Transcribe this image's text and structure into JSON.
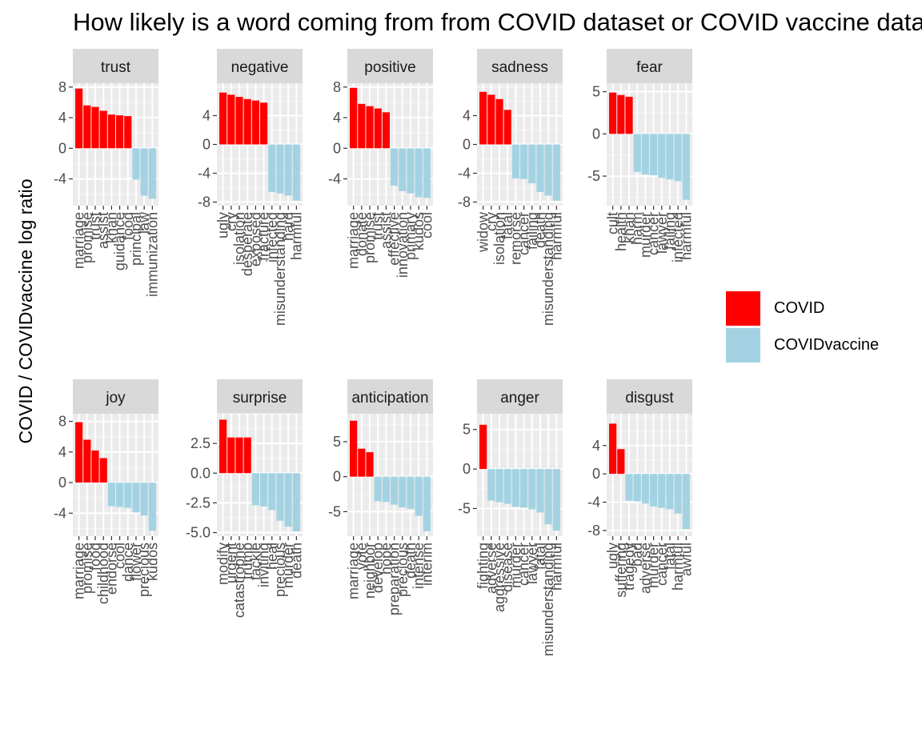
{
  "chart_data": {
    "type": "bar",
    "title": "How likely is a word coming from from COVID dataset or COVID vaccine dataset",
    "ylabel": "COVID / COVIDvaccine log ratio",
    "xlabel": "",
    "legend": {
      "position": "right",
      "entries": [
        {
          "name": "COVID",
          "color": "#FF0000"
        },
        {
          "name": "COVIDvaccine",
          "color": "#A3D3E3"
        }
      ]
    },
    "colors": {
      "COVID": "#FF0000",
      "COVIDvaccine": "#A3D3E3",
      "panel_bg": "#EBEBEB",
      "strip_bg": "#D9D9D9"
    },
    "panels": [
      {
        "label": "trust",
        "words": [
          "marriage",
          "promise",
          "trust",
          "assist",
          "khan",
          "guidance",
          "food",
          "principal",
          "law",
          "immunization"
        ],
        "values": [
          7.8,
          5.6,
          5.4,
          4.9,
          4.4,
          4.3,
          4.2,
          -4.1,
          -6.2,
          -6.6
        ],
        "ylim": [
          -7.5,
          8.5
        ],
        "yticks": [
          8,
          4,
          0,
          -4
        ],
        "ytick_labels": [
          "8",
          "4",
          "0",
          "-4"
        ]
      },
      {
        "label": "negative",
        "words": [
          "ugly",
          "cry",
          "isolation",
          "desperate",
          "exposed",
          "fracture",
          "infected",
          "misunderstanding",
          "hard",
          "harmful"
        ],
        "values": [
          7.2,
          6.9,
          6.6,
          6.3,
          6.1,
          5.8,
          -6.6,
          -6.8,
          -7.1,
          -7.8
        ],
        "ylim": [
          -8.5,
          8.5
        ],
        "yticks": [
          4,
          0,
          -4,
          -8
        ],
        "ytick_labels": [
          "4",
          "0",
          "-4",
          "-8"
        ]
      },
      {
        "label": "positive",
        "words": [
          "marriage",
          "donate",
          "promise",
          "trust",
          "assist",
          "effective",
          "innovation",
          "primary",
          "kudos",
          "cool"
        ],
        "values": [
          7.9,
          5.8,
          5.5,
          5.2,
          4.7,
          -4.9,
          -5.6,
          -5.9,
          -6.4,
          -6.5
        ],
        "ylim": [
          -7.5,
          8.5
        ],
        "yticks": [
          8,
          4,
          0,
          -4
        ],
        "ytick_labels": [
          "8",
          "4",
          "0",
          "-4"
        ]
      },
      {
        "label": "sadness",
        "words": [
          "widow",
          "cry",
          "isolation",
          "fatal",
          "remorse",
          "cancer",
          "failing",
          "death",
          "misunderstanding",
          "harmful"
        ],
        "values": [
          7.3,
          6.9,
          6.3,
          4.8,
          -4.7,
          -4.8,
          -5.4,
          -6.6,
          -7.1,
          -7.8
        ],
        "ylim": [
          -8.5,
          8.5
        ],
        "yticks": [
          4,
          0,
          -4,
          -8
        ],
        "ytick_labels": [
          "4",
          "0",
          "-4",
          "-8"
        ]
      },
      {
        "label": "fear",
        "words": [
          "cult",
          "health",
          "khan",
          "harm",
          "murder",
          "cancer",
          "lawyer",
          "failing",
          "infected",
          "harmful"
        ],
        "values": [
          4.9,
          4.6,
          4.4,
          -4.5,
          -4.8,
          -4.9,
          -5.2,
          -5.4,
          -5.6,
          -7.8
        ],
        "ylim": [
          -8.5,
          6.0
        ],
        "yticks": [
          5,
          0,
          -5
        ],
        "ytick_labels": [
          "5",
          "0",
          "-5"
        ]
      },
      {
        "label": "joy",
        "words": [
          "marriage",
          "promise",
          "food",
          "childhood",
          "endorse",
          "cool",
          "dance",
          "flower",
          "precious",
          "kudos"
        ],
        "values": [
          7.9,
          5.6,
          4.2,
          3.2,
          -3.1,
          -3.2,
          -3.3,
          -3.9,
          -4.3,
          -6.3
        ],
        "ylim": [
          -7.0,
          9.0
        ],
        "yticks": [
          8,
          4,
          0,
          -4
        ],
        "ytick_labels": [
          "8",
          "4",
          "0",
          "-4"
        ]
      },
      {
        "label": "surprise",
        "words": [
          "modify",
          "urgent",
          "catastrophe",
          "trump",
          "tackle",
          "inviting",
          "heal",
          "precious",
          "murder",
          "death"
        ],
        "values": [
          4.5,
          3.0,
          3.0,
          3.0,
          -2.7,
          -2.8,
          -3.1,
          -4.0,
          -4.5,
          -4.9
        ],
        "ylim": [
          -5.3,
          5.0
        ],
        "yticks": [
          2.5,
          0.0,
          -2.5,
          -5.0
        ],
        "ytick_labels": [
          "2.5",
          "0.0",
          "-2.5",
          "-5.0"
        ]
      },
      {
        "label": "anticipation",
        "words": [
          "marriage",
          "vote",
          "neighbor",
          "develop",
          "hope",
          "preparation",
          "precious",
          "death",
          "intense",
          "interim"
        ],
        "values": [
          8.0,
          4.0,
          3.5,
          -3.5,
          -3.6,
          -4.0,
          -4.4,
          -4.6,
          -5.6,
          -7.8
        ],
        "ylim": [
          -8.5,
          9.0
        ],
        "yticks": [
          5,
          0,
          -5
        ],
        "ytick_labels": [
          "5",
          "0",
          "-5"
        ]
      },
      {
        "label": "anger",
        "words": [
          "fighting",
          "adverse",
          "aggressive",
          "disease",
          "murder",
          "cancer",
          "lawyer",
          "fatal",
          "misunderstanding",
          "harmful"
        ],
        "values": [
          5.6,
          -4.0,
          -4.2,
          -4.4,
          -4.8,
          -4.9,
          -5.1,
          -5.5,
          -7.0,
          -7.8
        ],
        "ylim": [
          -8.5,
          7.0
        ],
        "yticks": [
          5,
          0,
          -5
        ],
        "ytick_labels": [
          "5",
          "0",
          "-5"
        ]
      },
      {
        "label": "disgust",
        "words": [
          "ugly",
          "suffering",
          "tragedy",
          "bad",
          "adverse",
          "murder",
          "cancer",
          "fatal",
          "harmful",
          "awful"
        ],
        "values": [
          7.1,
          3.5,
          -3.8,
          -3.9,
          -4.2,
          -4.6,
          -4.8,
          -5.0,
          -5.6,
          -7.8
        ],
        "ylim": [
          -8.8,
          8.5
        ],
        "yticks": [
          4,
          0,
          -4,
          -8
        ],
        "ytick_labels": [
          "4",
          "0",
          "-4",
          "-8"
        ]
      }
    ]
  }
}
